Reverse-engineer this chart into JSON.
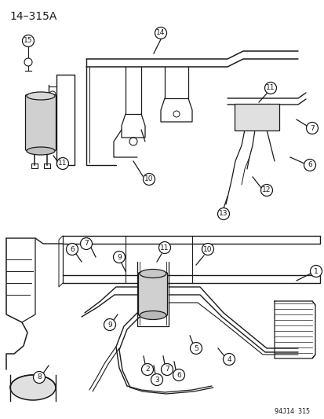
{
  "title": "14–315A",
  "figure_code": "94J14 315",
  "bg_color": "#ffffff",
  "line_color": "#1a1a1a",
  "text_color": "#1a1a1a",
  "title_fontsize": 10,
  "fig_width": 4.14,
  "fig_height": 5.33,
  "dpi": 100
}
